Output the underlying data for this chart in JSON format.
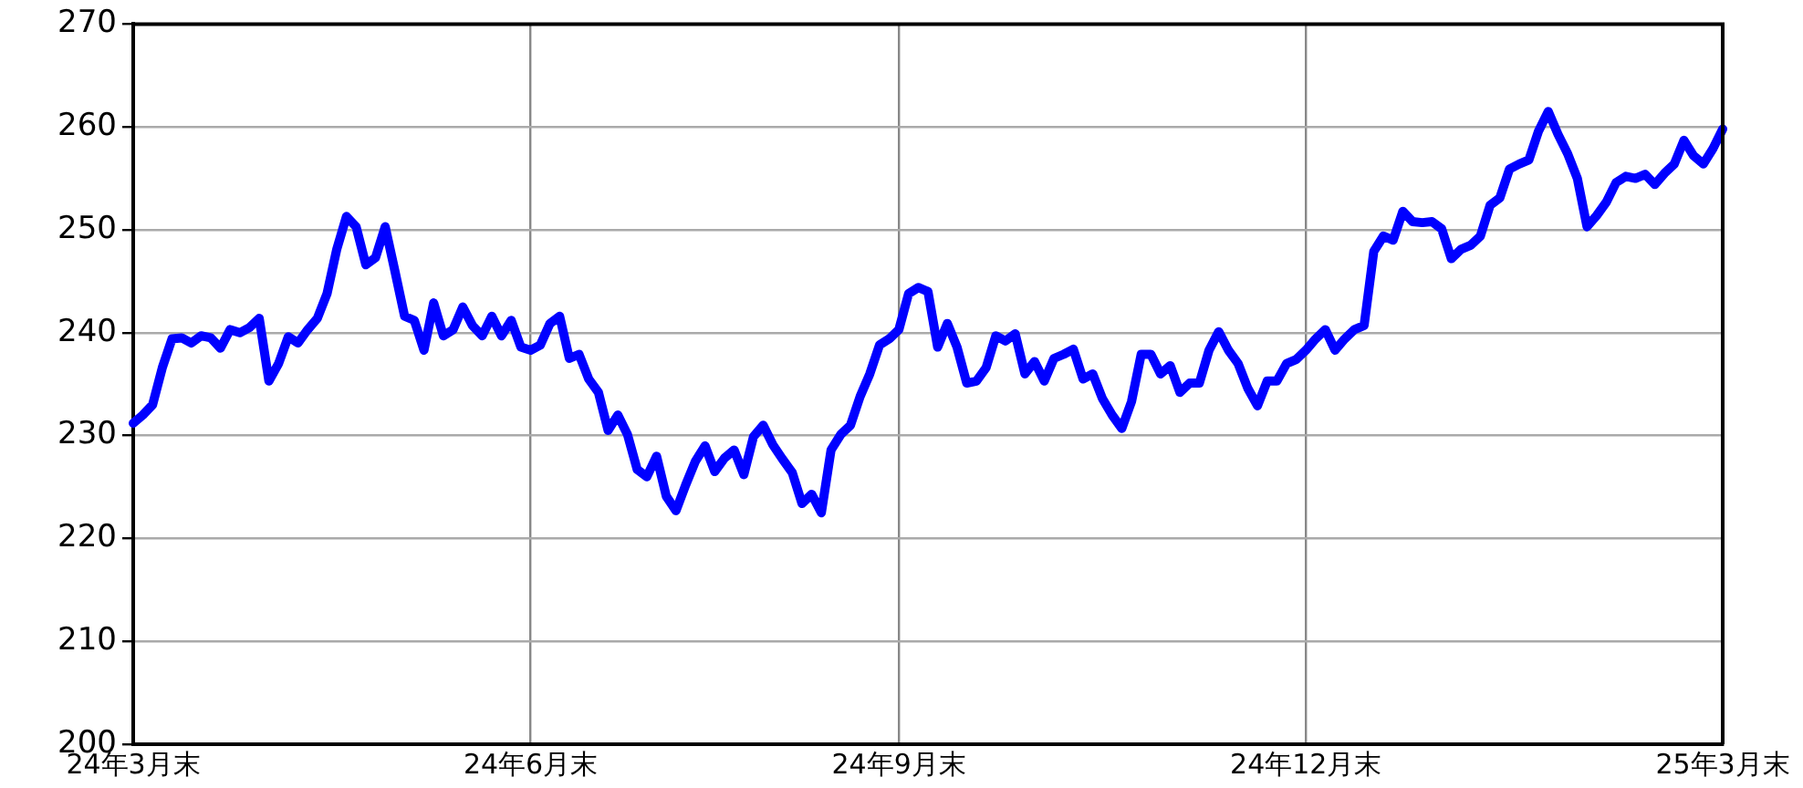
{
  "chart_data": {
    "type": "line",
    "grid": true,
    "marker": "none",
    "line_style": "solid",
    "categories": [
      "24年3月末",
      null,
      null,
      null,
      null,
      null,
      null,
      null,
      null,
      null,
      null,
      null,
      null,
      null,
      null,
      null,
      null,
      null,
      null,
      null,
      null,
      null,
      null,
      null,
      null,
      null,
      null,
      null,
      null,
      null,
      null,
      null,
      null,
      null,
      null,
      null,
      null,
      null,
      null,
      null,
      null,
      "24年6月末",
      null,
      null,
      null,
      null,
      null,
      null,
      null,
      null,
      null,
      null,
      null,
      null,
      null,
      null,
      null,
      null,
      null,
      null,
      null,
      null,
      null,
      null,
      null,
      null,
      null,
      null,
      null,
      null,
      null,
      null,
      null,
      null,
      null,
      null,
      null,
      null,
      null,
      "24年9月末",
      null,
      null,
      null,
      null,
      null,
      null,
      null,
      null,
      null,
      null,
      null,
      null,
      null,
      null,
      null,
      null,
      null,
      null,
      null,
      null,
      null,
      null,
      null,
      null,
      null,
      null,
      null,
      null,
      null,
      null,
      null,
      null,
      null,
      null,
      null,
      null,
      null,
      null,
      null,
      null,
      null,
      "24年12月末",
      null,
      null,
      null,
      null,
      null,
      null,
      null,
      null,
      null,
      null,
      null,
      null,
      null,
      null,
      null,
      null,
      null,
      null,
      null,
      null,
      null,
      null,
      null,
      null,
      null,
      null,
      null,
      null,
      null,
      null,
      null,
      null,
      null,
      null,
      null,
      null,
      null,
      null,
      null,
      null,
      null,
      null,
      "25年3月末"
    ],
    "series": [
      {
        "color": "#0000ff",
        "values": [
          231.2,
          232,
          233,
          236.6,
          239.4,
          239.5,
          239,
          239.7,
          239.5,
          238.5,
          240.3,
          240,
          240.5,
          241.4,
          235.3,
          237,
          239.6,
          239,
          240.3,
          241.4,
          243.8,
          248.1,
          251.3,
          250.3,
          246.6,
          247.3,
          250.3,
          246,
          241.6,
          241.2,
          238.3,
          242.9,
          239.7,
          240.3,
          242.5,
          240.7,
          239.7,
          241.6,
          239.7,
          241.2,
          238.6,
          238.3,
          238.8,
          240.9,
          241.6,
          237.5,
          237.9,
          235.5,
          234.2,
          230.5,
          232,
          230.1,
          226.7,
          226,
          228,
          224.1,
          222.7,
          225.2,
          227.5,
          229,
          226.5,
          227.8,
          228.6,
          226.2,
          229.9,
          231,
          229.1,
          227.7,
          226.4,
          223.4,
          224.3,
          222.5,
          228.6,
          230.1,
          231,
          233.8,
          236,
          238.8,
          239.4,
          240.3,
          243.8,
          244.4,
          244,
          238.6,
          240.9,
          238.6,
          235.1,
          235.3,
          236.6,
          239.7,
          239.2,
          239.9,
          236,
          237.2,
          235.3,
          237.5,
          237.9,
          238.4,
          235.5,
          236,
          233.6,
          232,
          230.7,
          233.3,
          237.9,
          237.9,
          236,
          236.8,
          234.2,
          235.1,
          235.1,
          238.3,
          240.1,
          238.3,
          237,
          234.6,
          232.9,
          235.3,
          235.3,
          237,
          237.4,
          238.3,
          239.4,
          240.3,
          238.3,
          239.4,
          240.3,
          240.7,
          247.9,
          249.4,
          249,
          251.8,
          250.8,
          250.7,
          250.8,
          250.1,
          247.2,
          248.1,
          248.5,
          249.4,
          252.4,
          253.1,
          255.9,
          256.4,
          256.8,
          259.6,
          261.5,
          259.3,
          257.4,
          255,
          250.3,
          251.4,
          252.7,
          254.6,
          255.2,
          255,
          255.4,
          254.4,
          255.5,
          256.4,
          258.7,
          257.2,
          256.4,
          257.9,
          259.8
        ]
      }
    ],
    "ylim": [
      200,
      270
    ],
    "yticks": [
      200,
      210,
      220,
      230,
      240,
      250,
      260,
      270
    ]
  }
}
